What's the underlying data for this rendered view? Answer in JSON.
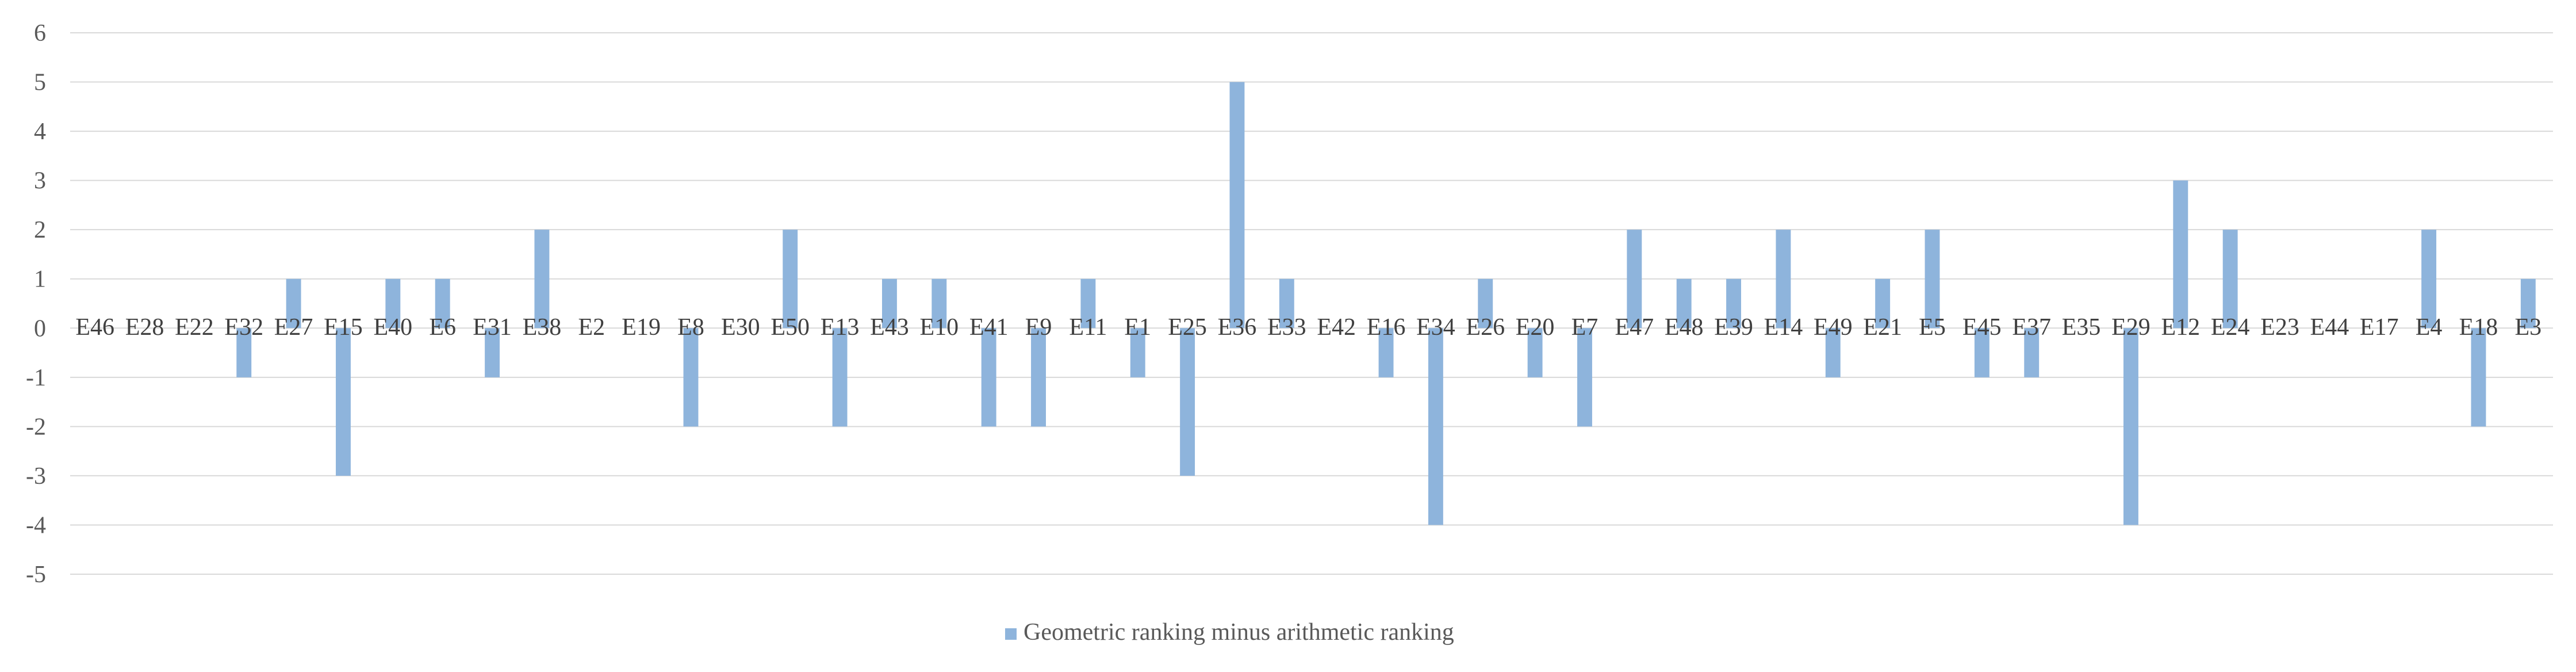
{
  "chart_data": {
    "type": "bar",
    "categories": [
      "E46",
      "E28",
      "E22",
      "E32",
      "E27",
      "E15",
      "E40",
      "E6",
      "E31",
      "E38",
      "E2",
      "E19",
      "E8",
      "E30",
      "E50",
      "E13",
      "E43",
      "E10",
      "E41",
      "E9",
      "E11",
      "E1",
      "E25",
      "E36",
      "E33",
      "E42",
      "E16",
      "E34",
      "E26",
      "E20",
      "E7",
      "E47",
      "E48",
      "E39",
      "E14",
      "E49",
      "E21",
      "E5",
      "E45",
      "E37",
      "E35",
      "E29",
      "E12",
      "E24",
      "E23",
      "E44",
      "E17",
      "E4",
      "E18",
      "E3"
    ],
    "series": [
      {
        "name": "Geometric ranking minus arithmetic ranking",
        "values": [
          0,
          0,
          0,
          -1,
          1,
          -3,
          1,
          1,
          -1,
          2,
          0,
          0,
          -2,
          0,
          2,
          -2,
          1,
          1,
          -2,
          -2,
          1,
          -1,
          -3,
          5,
          1,
          0,
          -1,
          -4,
          1,
          -1,
          -2,
          2,
          1,
          1,
          2,
          -1,
          1,
          2,
          -1,
          -1,
          0,
          -4,
          3,
          2,
          0,
          0,
          0,
          2,
          -2,
          1
        ]
      }
    ],
    "ylim": [
      -5,
      6
    ],
    "yticks": [
      -5,
      -4,
      -3,
      -2,
      -1,
      0,
      1,
      2,
      3,
      4,
      5,
      6
    ],
    "grid": true,
    "legend_position": "bottom",
    "bar_color": "#8EB4DC",
    "grid_color": "#D9D9D9"
  }
}
